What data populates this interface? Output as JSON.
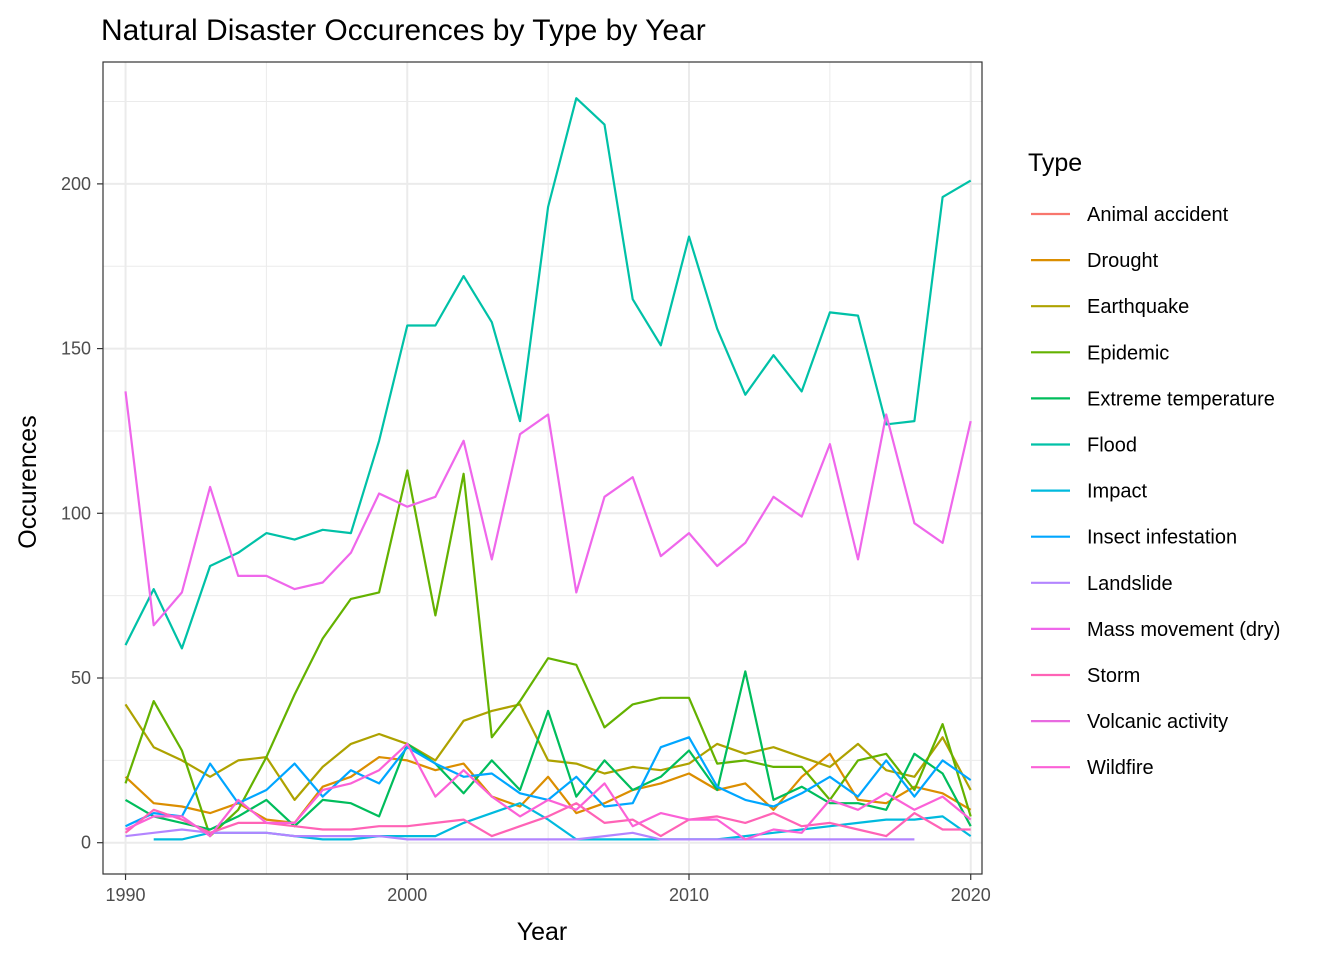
{
  "chart_data": {
    "type": "line",
    "title": "Natural Disaster Occurences by Type by Year",
    "xlabel": "Year",
    "ylabel": "Occurences",
    "xlim": [
      1989.2,
      2020.4
    ],
    "ylim": [
      -9.5,
      237
    ],
    "xticks": [
      1990,
      2000,
      2010,
      2020
    ],
    "yticks": [
      0,
      50,
      100,
      150,
      200
    ],
    "grid": true,
    "legend": {
      "title": "Type",
      "position": "right"
    },
    "series": [
      {
        "name": "Animal accident",
        "color": "#F8766D",
        "x": [],
        "y": []
      },
      {
        "name": "Drought",
        "color": "#DB8E00",
        "x": [
          1990,
          1991,
          1992,
          1993,
          1994,
          1995,
          1996,
          1997,
          1998,
          1999,
          2000,
          2001,
          2002,
          2003,
          2004,
          2005,
          2006,
          2007,
          2008,
          2009,
          2010,
          2011,
          2012,
          2013,
          2014,
          2015,
          2016,
          2017,
          2018,
          2019,
          2020
        ],
        "y": [
          20,
          12,
          11,
          9,
          12,
          7,
          6,
          17,
          20,
          26,
          25,
          22,
          24,
          14,
          11,
          20,
          9,
          12,
          16,
          18,
          21,
          16,
          18,
          10,
          20,
          27,
          13,
          12,
          17,
          15,
          10
        ]
      },
      {
        "name": "Earthquake",
        "color": "#AEA200",
        "x": [
          1990,
          1991,
          1992,
          1993,
          1994,
          1995,
          1996,
          1997,
          1998,
          1999,
          2000,
          2001,
          2002,
          2003,
          2004,
          2005,
          2006,
          2007,
          2008,
          2009,
          2010,
          2011,
          2012,
          2013,
          2014,
          2015,
          2016,
          2017,
          2018,
          2019,
          2020
        ],
        "y": [
          42,
          29,
          25,
          20,
          25,
          26,
          13,
          23,
          30,
          33,
          30,
          25,
          37,
          40,
          42,
          25,
          24,
          21,
          23,
          22,
          24,
          30,
          27,
          29,
          26,
          23,
          30,
          22,
          20,
          32,
          16
        ]
      },
      {
        "name": "Epidemic",
        "color": "#64B200",
        "x": [
          1990,
          1991,
          1992,
          1993,
          1994,
          1995,
          1996,
          1997,
          1998,
          1999,
          2000,
          2001,
          2002,
          2003,
          2004,
          2005,
          2006,
          2007,
          2008,
          2009,
          2010,
          2011,
          2012,
          2013,
          2014,
          2015,
          2016,
          2017,
          2018,
          2019,
          2020
        ],
        "y": [
          18,
          43,
          28,
          2,
          10,
          26,
          45,
          62,
          74,
          76,
          113,
          69,
          112,
          32,
          43,
          56,
          54,
          35,
          42,
          44,
          44,
          24,
          25,
          23,
          23,
          13,
          25,
          27,
          16,
          36,
          8
        ]
      },
      {
        "name": "Extreme temperature",
        "color": "#00BD5C",
        "x": [
          1990,
          1991,
          1992,
          1993,
          1994,
          1995,
          1996,
          1997,
          1998,
          1999,
          2000,
          2001,
          2002,
          2003,
          2004,
          2005,
          2006,
          2007,
          2008,
          2009,
          2010,
          2011,
          2012,
          2013,
          2014,
          2015,
          2016,
          2017,
          2018,
          2019,
          2020
        ],
        "y": [
          13,
          8,
          6,
          4,
          8,
          13,
          5,
          13,
          12,
          8,
          30,
          24,
          15,
          25,
          16,
          40,
          14,
          25,
          16,
          20,
          28,
          16,
          52,
          13,
          17,
          12,
          12,
          10,
          27,
          21,
          5
        ]
      },
      {
        "name": "Flood",
        "color": "#00C1A7",
        "x": [
          1990,
          1991,
          1992,
          1993,
          1994,
          1995,
          1996,
          1997,
          1998,
          1999,
          2000,
          2001,
          2002,
          2003,
          2004,
          2005,
          2006,
          2007,
          2008,
          2009,
          2010,
          2011,
          2012,
          2013,
          2014,
          2015,
          2016,
          2017,
          2018,
          2019,
          2020
        ],
        "y": [
          60,
          77,
          59,
          84,
          88,
          94,
          92,
          95,
          94,
          122,
          157,
          157,
          172,
          158,
          128,
          193,
          226,
          218,
          165,
          151,
          184,
          156,
          136,
          148,
          137,
          161,
          160,
          127,
          128,
          196,
          201
        ]
      },
      {
        "name": "Impact",
        "color": "#00BADE",
        "x": [
          1991,
          1992,
          1993,
          1994,
          1995,
          1996,
          1997,
          1998,
          1999,
          2000,
          2001,
          2002,
          2003,
          2004,
          2005,
          2006,
          2007,
          2008,
          2009,
          2010,
          2011,
          2012,
          2013,
          2014,
          2015,
          2016,
          2017,
          2018,
          2019,
          2020
        ],
        "y": [
          1,
          1,
          3,
          3,
          3,
          2,
          1,
          1,
          2,
          2,
          2,
          6,
          9,
          12,
          7,
          1,
          1,
          1,
          1,
          1,
          1,
          2,
          3,
          4,
          5,
          6,
          7,
          7,
          8,
          2
        ]
      },
      {
        "name": "Insect infestation",
        "color": "#00A6FF",
        "x": [
          1990,
          1991,
          1992,
          1993,
          1994,
          1995,
          1996,
          1997,
          1998,
          1999,
          2000,
          2001,
          2002,
          2003,
          2004,
          2005,
          2006,
          2007,
          2008,
          2009,
          2010,
          2011,
          2012,
          2013,
          2014,
          2015,
          2016,
          2017,
          2018,
          2019,
          2020
        ],
        "y": [
          5,
          9,
          8,
          24,
          12,
          16,
          24,
          14,
          22,
          18,
          29,
          24,
          20,
          21,
          15,
          13,
          20,
          11,
          12,
          29,
          32,
          17,
          13,
          11,
          15,
          20,
          14,
          25,
          14,
          25,
          19
        ]
      },
      {
        "name": "Landslide",
        "color": "#B385FF",
        "x": [
          1990,
          1991,
          1992,
          1993,
          1994,
          1995,
          1996,
          1997,
          1998,
          1999,
          2000,
          2001,
          2002,
          2003,
          2004,
          2005,
          2006,
          2007,
          2008,
          2009,
          2010,
          2011,
          2012,
          2013,
          2014,
          2015,
          2016,
          2017,
          2018
        ],
        "y": [
          2,
          3,
          4,
          3,
          3,
          3,
          2,
          2,
          2,
          2,
          1,
          1,
          1,
          1,
          1,
          1,
          1,
          2,
          3,
          1,
          1,
          1,
          1,
          1,
          1,
          1,
          1,
          1,
          1
        ]
      },
      {
        "name": "Mass movement (dry)",
        "color": "#EF67EB",
        "x": [
          1990,
          1991,
          1992,
          1993,
          1994,
          1995,
          1996,
          1997,
          1998,
          1999,
          2000,
          2001,
          2002,
          2003,
          2004,
          2005,
          2006,
          2007,
          2008,
          2009,
          2010,
          2011,
          2012,
          2013,
          2014,
          2015,
          2016,
          2017,
          2018,
          2019,
          2020
        ],
        "y": [
          137,
          66,
          76,
          108,
          81,
          81,
          77,
          79,
          88,
          106,
          102,
          105,
          122,
          86,
          124,
          130,
          76,
          105,
          111,
          87,
          94,
          84,
          91,
          105,
          99,
          121,
          86,
          130,
          97,
          91,
          128
        ]
      },
      {
        "name": "Storm",
        "color": "#FF63B6",
        "x": [
          1990,
          1991,
          1992,
          1993,
          1994,
          1995,
          1996,
          1997,
          1998,
          1999,
          2000,
          2001,
          2002,
          2003,
          2004,
          2005,
          2006,
          2007,
          2008,
          2009,
          2010,
          2011,
          2012,
          2013,
          2014,
          2015,
          2016,
          2017,
          2018,
          2019,
          2020
        ],
        "y": [
          3,
          10,
          7,
          3,
          6,
          6,
          5,
          4,
          4,
          5,
          5,
          6,
          7,
          2,
          5,
          8,
          12,
          6,
          7,
          2,
          7,
          8,
          6,
          9,
          5,
          6,
          4,
          2,
          9,
          4,
          4
        ]
      },
      {
        "name": "Volcanic activity",
        "color": "#E86AE0",
        "x": [],
        "y": []
      },
      {
        "name": "Wildfire",
        "color": "#FB61D7",
        "x": [
          1990,
          1991,
          1992,
          1993,
          1994,
          1995,
          1996,
          1997,
          1998,
          1999,
          2000,
          2001,
          2002,
          2003,
          2004,
          2005,
          2006,
          2007,
          2008,
          2009,
          2010,
          2011,
          2012,
          2013,
          2014,
          2015,
          2016,
          2017,
          2018,
          2019,
          2020
        ],
        "y": [
          4,
          8,
          8,
          2,
          13,
          6,
          6,
          16,
          18,
          22,
          30,
          14,
          22,
          14,
          8,
          13,
          10,
          18,
          5,
          9,
          7,
          7,
          1,
          4,
          3,
          13,
          10,
          15,
          10,
          14,
          7
        ]
      }
    ]
  }
}
